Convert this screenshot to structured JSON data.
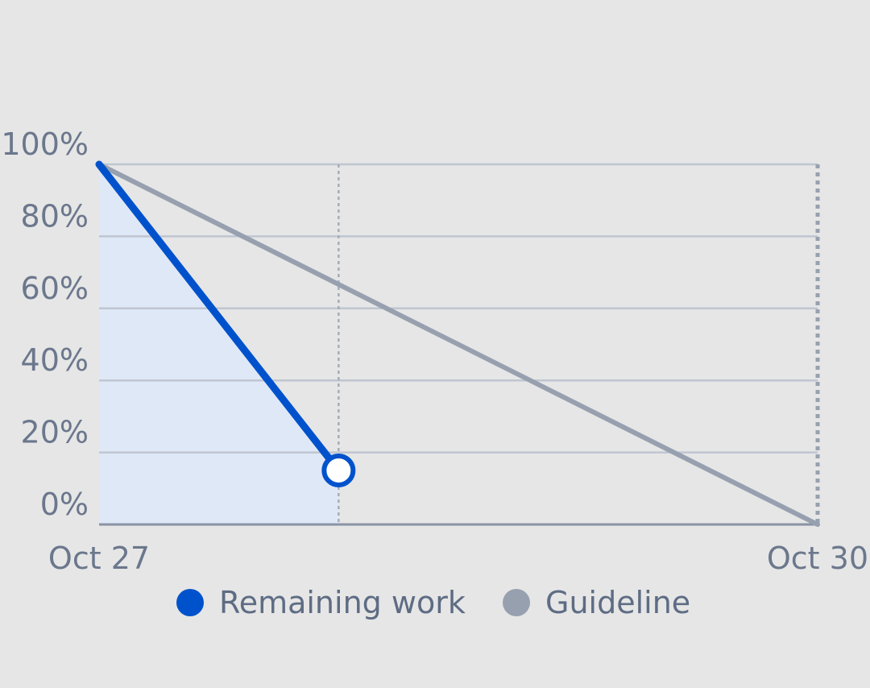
{
  "chart_data": {
    "type": "area",
    "title": "",
    "xlabel": "",
    "ylabel": "",
    "x_ticks": [
      "Oct 27",
      "Oct 30"
    ],
    "xlim": [
      "Oct 27",
      "Oct 30"
    ],
    "y_ticks": [
      "0%",
      "20%",
      "40%",
      "60%",
      "80%",
      "100%"
    ],
    "ylim": [
      0,
      100
    ],
    "grid": "horizontal",
    "current_date_marker": "Oct 28",
    "series": [
      {
        "name": "Remaining work",
        "color": "#0052cc",
        "style": "line-with-fill",
        "points": [
          {
            "x": "Oct 27",
            "y": 100
          },
          {
            "x": "Oct 28",
            "y": 15
          }
        ]
      },
      {
        "name": "Guideline",
        "color": "#97a0af",
        "style": "line",
        "points": [
          {
            "x": "Oct 27",
            "y": 100
          },
          {
            "x": "Oct 30",
            "y": 0
          }
        ]
      }
    ],
    "legend": {
      "placement": "bottom-center",
      "items": [
        {
          "label": "Remaining work",
          "color": "#0052cc"
        },
        {
          "label": "Guideline",
          "color": "#97a0af"
        }
      ]
    }
  }
}
